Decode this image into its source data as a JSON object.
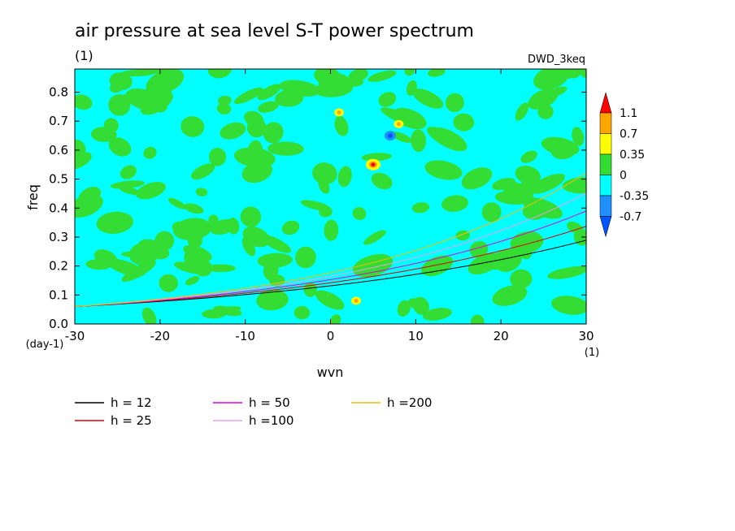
{
  "chart_data": {
    "type": "heatmap",
    "title": "air pressure at sea level S-T power spectrum",
    "subtitle": "(1)",
    "annotation": "DWD_3keq",
    "xlabel": "wvn",
    "ylabel": "freq",
    "x_unit": "(1)",
    "y_unit": "(day-1)",
    "xlim": [
      -30,
      30
    ],
    "ylim": [
      0,
      0.88
    ],
    "x_ticks": [
      "-30",
      "-20",
      "-10",
      "0",
      "10",
      "20",
      "30"
    ],
    "y_ticks": [
      "0.0",
      "0.1",
      "0.2",
      "0.3",
      "0.4",
      "0.5",
      "0.6",
      "0.7",
      "0.8"
    ],
    "colorbar": {
      "levels": [
        "1.1",
        "0.7",
        "0.35",
        "0",
        "-0.35",
        "-0.7"
      ],
      "colors": [
        "#ff0000",
        "#ffa500",
        "#ffff00",
        "#33dd33",
        "#00ffff",
        "#1e90ff",
        "#0055ff"
      ]
    },
    "field": {
      "background_class": "-0.35 to 0",
      "background_color": "#00ffff",
      "positive_color": "#33dd33",
      "peaks": [
        {
          "x": 5,
          "y": 0.55,
          "level": "1.1"
        },
        {
          "x": 7,
          "y": 0.65,
          "level": "-0.7"
        },
        {
          "x": 3,
          "y": 0.08,
          "level": "0.7"
        },
        {
          "x": 1,
          "y": 0.73,
          "level": "0.7"
        },
        {
          "x": 8,
          "y": 0.69,
          "level": "0.7"
        }
      ]
    },
    "series": [
      {
        "name": "h = 12",
        "h": 12,
        "color": "#000000"
      },
      {
        "name": "h = 25",
        "h": 25,
        "color": "#e00000"
      },
      {
        "name": "h = 50",
        "h": 50,
        "color": "#e000e0"
      },
      {
        "name": "h =100",
        "h": 100,
        "color": "#e8a0e8"
      },
      {
        "name": "h =200",
        "h": 200,
        "color": "#f0c000"
      }
    ],
    "grid": false,
    "legend_placement": "bottom-left"
  }
}
